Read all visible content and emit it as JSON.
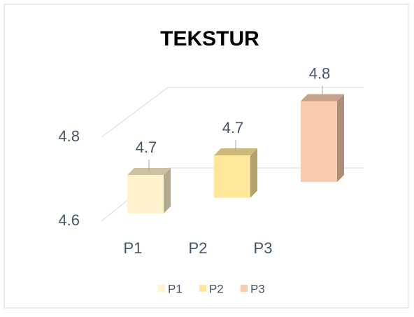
{
  "chart_data": {
    "type": "bar3d",
    "title": "TEKSTUR",
    "categories": [
      "P1",
      "P2",
      "P3"
    ],
    "values": [
      4.7,
      4.71,
      4.81
    ],
    "value_labels": [
      "4.7",
      "4.7",
      "4.8"
    ],
    "colors": [
      "#fff2cc",
      "#ffe699",
      "#f8cbad"
    ],
    "ylim": [
      4.6,
      4.8
    ],
    "yticks": [
      4.6,
      4.8
    ],
    "grid": true,
    "legend": "bottom"
  }
}
